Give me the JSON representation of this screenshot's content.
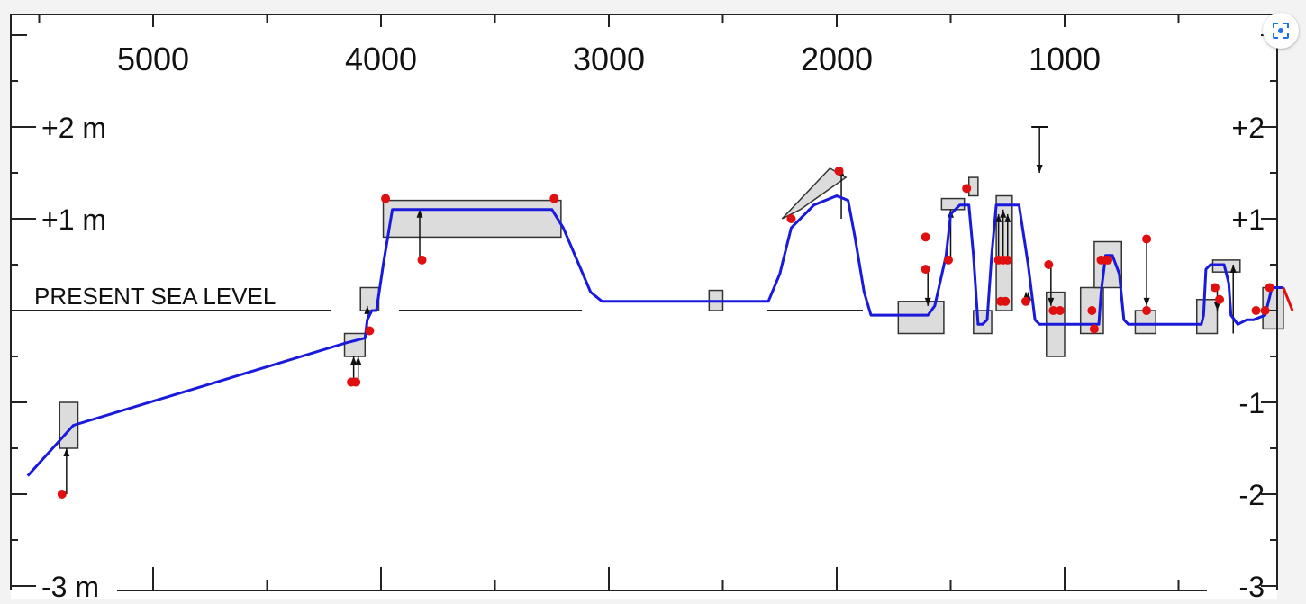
{
  "chart_data": {
    "type": "line",
    "title": "",
    "xlabel": "",
    "ylabel": "",
    "x_reversed": true,
    "xlim": [
      5600,
      0
    ],
    "ylim": [
      -3,
      3
    ],
    "x_ticks": [
      5000,
      4000,
      3000,
      2000,
      1000
    ],
    "x_tick_labels": [
      "5000",
      "4000",
      "3000",
      "2000",
      "1000"
    ],
    "y_ticks_left": [
      2,
      1,
      -3
    ],
    "y_tick_labels_left": [
      "+2 m",
      "+1 m",
      "-3 m"
    ],
    "y_ticks_right": [
      2,
      1,
      -1,
      -2,
      -3
    ],
    "y_tick_labels_right": [
      "+2",
      "+1",
      "-1",
      "-2",
      "-3"
    ],
    "annotation": "PRESENT SEA LEVEL",
    "grid": false,
    "series": [
      {
        "color": "#1a1adc",
        "x": [
          5550,
          5350,
          4150,
          4070,
          4060,
          4040,
          4020,
          3990,
          3950,
          3250,
          3200,
          3080,
          3030,
          2300,
          2250,
          2200,
          2140,
          2100,
          2000,
          1950,
          1920,
          1880,
          1850,
          1600,
          1570,
          1520,
          1500,
          1460,
          1420,
          1400,
          1380,
          1360,
          1340,
          1320,
          1300,
          1280,
          1240,
          1200,
          1160,
          1130,
          1110,
          1090,
          850,
          840,
          820,
          790,
          760,
          740,
          720,
          690,
          660,
          400,
          390,
          380,
          360,
          300,
          280,
          270,
          240,
          200,
          170,
          120,
          90,
          60,
          40
        ],
        "y": [
          -1.8,
          -1.25,
          -0.35,
          -0.3,
          -0.1,
          0.0,
          0.0,
          0.5,
          1.1,
          1.1,
          0.9,
          0.2,
          0.1,
          0.1,
          0.4,
          0.9,
          1.05,
          1.15,
          1.25,
          1.2,
          0.8,
          0.2,
          -0.05,
          -0.05,
          0.05,
          0.6,
          1.05,
          1.15,
          1.15,
          0.6,
          -0.15,
          -0.15,
          -0.1,
          0.6,
          1.15,
          1.15,
          1.15,
          1.15,
          0.5,
          -0.1,
          -0.15,
          -0.15,
          -0.15,
          0.2,
          0.6,
          0.6,
          0.4,
          -0.1,
          -0.15,
          -0.15,
          -0.15,
          -0.15,
          -0.05,
          0.45,
          0.5,
          0.5,
          0.3,
          -0.05,
          -0.15,
          -0.1,
          -0.1,
          -0.05,
          0.25,
          0.25,
          0.25
        ]
      },
      {
        "color": "#e01010",
        "x": [
          40,
          0
        ],
        "y": [
          0.25,
          0.0
        ]
      }
    ],
    "points": {
      "color": "#e01010",
      "x": [
        5400,
        4130,
        4110,
        4050,
        3980,
        3820,
        3240,
        2200,
        1990,
        1610,
        1610,
        1510,
        1430,
        1290,
        1280,
        1270,
        1260,
        1250,
        1170,
        1070,
        1050,
        1020,
        880,
        870,
        840,
        820,
        810,
        640,
        640,
        340,
        320,
        160,
        120,
        100
      ],
      "y": [
        -2.0,
        -0.78,
        -0.78,
        -0.22,
        1.22,
        0.55,
        1.22,
        1.0,
        1.52,
        0.8,
        0.45,
        0.55,
        1.33,
        0.55,
        0.1,
        0.55,
        0.1,
        0.55,
        0.1,
        0.5,
        0.0,
        0.0,
        0.0,
        -0.2,
        0.55,
        0.55,
        0.55,
        0.78,
        0.0,
        0.25,
        0.12,
        0.0,
        0.0,
        0.25
      ]
    },
    "boxes": [
      {
        "x0": 5410,
        "x1": 5330,
        "y0": -1.5,
        "y1": -1.0
      },
      {
        "x0": 4160,
        "x1": 4070,
        "y0": -0.5,
        "y1": -0.25
      },
      {
        "x0": 4090,
        "x1": 4010,
        "y0": 0.0,
        "y1": 0.25
      },
      {
        "x0": 3990,
        "x1": 3210,
        "y0": 0.8,
        "y1": 1.2
      },
      {
        "x0": 2560,
        "x1": 2500,
        "y0": 0.0,
        "y1": 0.22
      },
      {
        "x0": 1730,
        "x1": 1530,
        "y0": -0.25,
        "y1": 0.1
      },
      {
        "x0": 1540,
        "x1": 1440,
        "y0": 1.1,
        "y1": 1.22
      },
      {
        "x0": 1420,
        "x1": 1380,
        "y0": 1.25,
        "y1": 1.45
      },
      {
        "x0": 1400,
        "x1": 1320,
        "y0": -0.25,
        "y1": 0.0
      },
      {
        "x0": 1300,
        "x1": 1230,
        "y0": 0.0,
        "y1": 1.25
      },
      {
        "x0": 1080,
        "x1": 1000,
        "y0": -0.5,
        "y1": 0.2
      },
      {
        "x0": 930,
        "x1": 830,
        "y0": -0.25,
        "y1": 0.25
      },
      {
        "x0": 870,
        "x1": 750,
        "y0": 0.25,
        "y1": 0.75
      },
      {
        "x0": 690,
        "x1": 600,
        "y0": -0.25,
        "y1": 0.0
      },
      {
        "x0": 420,
        "x1": 330,
        "y0": -0.25,
        "y1": 0.12
      },
      {
        "x0": 350,
        "x1": 230,
        "y0": 0.42,
        "y1": 0.55
      },
      {
        "x0": 130,
        "x1": 40,
        "y0": -0.2,
        "y1": 0.25
      }
    ],
    "sloped_box": {
      "x": [
        2240,
        2160,
        1960,
        2030
      ],
      "y": [
        1.0,
        1.1,
        1.45,
        1.55
      ]
    },
    "arrows": [
      {
        "x": 5380,
        "y_from": -2.0,
        "y_to": -1.5
      },
      {
        "x": 4120,
        "y_from": -0.78,
        "y_to": -0.5
      },
      {
        "x": 4100,
        "y_from": -0.78,
        "y_to": -0.5
      },
      {
        "x": 4060,
        "y_from": -0.22,
        "y_to": 0.05
      },
      {
        "x": 3830,
        "y_from": 0.55,
        "y_to": 1.1
      },
      {
        "x": 1980,
        "y_from": 1.0,
        "y_to": 1.55
      },
      {
        "x": 1600,
        "y_from": 0.45,
        "y_to": 0.05
      },
      {
        "x": 1500,
        "y_from": 0.55,
        "y_to": 1.1
      },
      {
        "x": 1290,
        "y_from": 0.55,
        "y_to": 1.05
      },
      {
        "x": 1270,
        "y_from": 0.55,
        "y_to": 1.1
      },
      {
        "x": 1250,
        "y_from": 0.55,
        "y_to": 1.05
      },
      {
        "x": 1170,
        "y_from": 0.1,
        "y_to": 0.2
      },
      {
        "x": 1160,
        "y_from": 0.1,
        "y_to": 0.2
      },
      {
        "x": 1060,
        "y_from": 0.5,
        "y_to": 0.05
      },
      {
        "x": 640,
        "y_from": 0.78,
        "y_to": 0.05
      },
      {
        "x": 330,
        "y_from": 0.25,
        "y_to": 0.0
      },
      {
        "x": 260,
        "y_from": -0.25,
        "y_to": 0.5
      },
      {
        "x": 1110,
        "y_from": 2.0,
        "y_to": 1.5
      }
    ],
    "t_markers": [
      {
        "x": 1110,
        "y": 2.0
      }
    ]
  },
  "ui": {
    "lens_icon": "lens-search-icon"
  }
}
